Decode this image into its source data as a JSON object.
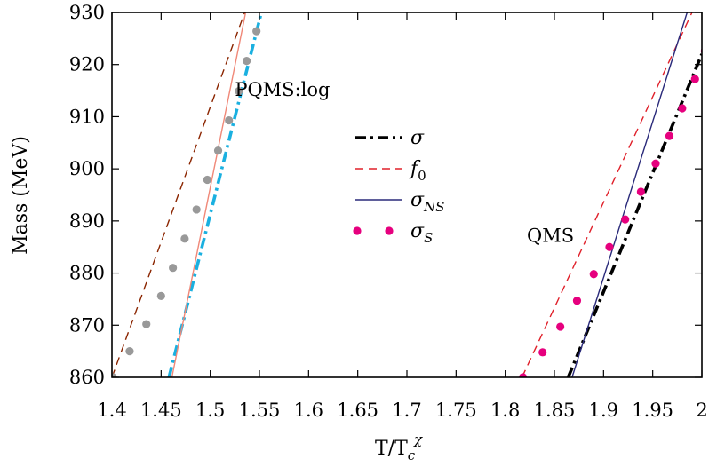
{
  "chart_data": {
    "type": "line",
    "xlabel": "T/T",
    "xlabel_sub": "c",
    "xlabel_sup": "χ",
    "ylabel": "Mass (MeV)",
    "xlim": [
      1.4,
      2.0
    ],
    "ylim": [
      860,
      930
    ],
    "xticks": [
      1.4,
      1.45,
      1.5,
      1.55,
      1.6,
      1.65,
      1.7,
      1.75,
      1.8,
      1.85,
      1.9,
      1.95,
      2.0
    ],
    "xtick_labels": [
      "1.4",
      "1.45",
      "1.5",
      "1.55",
      "1.6",
      "1.65",
      "1.7",
      "1.75",
      "1.8",
      "1.85",
      "1.9",
      "1.95",
      "2"
    ],
    "yticks": [
      860,
      870,
      880,
      890,
      900,
      910,
      920,
      930
    ],
    "ytick_labels": [
      "860",
      "870",
      "880",
      "890",
      "900",
      "910",
      "920",
      "930"
    ],
    "grid": false,
    "annotations": [
      {
        "text": "PQMS:log",
        "x": 1.525,
        "y": 914
      },
      {
        "text": "QMS",
        "x": 1.822,
        "y": 886
      }
    ],
    "legend": {
      "placement": "center",
      "entries": [
        {
          "base": "σ",
          "sub": "",
          "series": "sigma"
        },
        {
          "base": "f",
          "sub": "0",
          "series": "f0"
        },
        {
          "base": "σ",
          "sub": "NS",
          "series": "sigma_ns"
        },
        {
          "base": "σ",
          "sub": "S",
          "series": "sigma_s"
        }
      ]
    },
    "series": [
      {
        "key": "sigma",
        "group": "PQMS:log",
        "style": "dash-dot",
        "color": "#1ab0e0",
        "x": [
          1.458,
          1.552
        ],
        "y": [
          860,
          930
        ]
      },
      {
        "key": "f0",
        "group": "PQMS:log",
        "style": "dashed",
        "color": "#8b2500",
        "x": [
          1.4,
          1.535
        ],
        "y": [
          860,
          930
        ]
      },
      {
        "key": "sigma_ns",
        "group": "PQMS:log",
        "style": "solid",
        "color": "#f08878",
        "x": [
          1.461,
          1.536
        ],
        "y": [
          860,
          930
        ]
      },
      {
        "key": "sigma_s",
        "group": "PQMS:log",
        "style": "dots",
        "color": "#999999",
        "x": [
          1.401,
          1.418,
          1.435,
          1.45,
          1.462,
          1.474,
          1.486,
          1.497,
          1.508,
          1.519,
          1.529,
          1.537,
          1.547
        ],
        "y": [
          860,
          865,
          870.2,
          875.6,
          881,
          886.6,
          892.2,
          897.9,
          903.5,
          909.3,
          914.9,
          920.7,
          926.4
        ]
      },
      {
        "key": "sigma",
        "group": "QMS",
        "style": "dash-dot",
        "color": "#000000",
        "x": [
          1.864,
          2.0
        ],
        "y": [
          860,
          922
        ]
      },
      {
        "key": "f0",
        "group": "QMS",
        "style": "dashed",
        "color": "#e0202a",
        "x": [
          1.817,
          1.99
        ],
        "y": [
          860,
          930
        ]
      },
      {
        "key": "sigma_ns",
        "group": "QMS",
        "style": "solid",
        "color": "#2a2a7a",
        "x": [
          1.868,
          1.985
        ],
        "y": [
          860,
          930
        ]
      },
      {
        "key": "sigma_s",
        "group": "QMS",
        "style": "dots",
        "color": "#e6007e",
        "x": [
          1.818,
          1.838,
          1.856,
          1.873,
          1.89,
          1.906,
          1.922,
          1.938,
          1.953,
          1.967,
          1.98,
          1.993,
          2.003
        ],
        "y": [
          860,
          864.8,
          869.7,
          874.7,
          879.8,
          885,
          890.3,
          895.6,
          901,
          906.3,
          911.6,
          917.2,
          922.6
        ]
      }
    ]
  }
}
